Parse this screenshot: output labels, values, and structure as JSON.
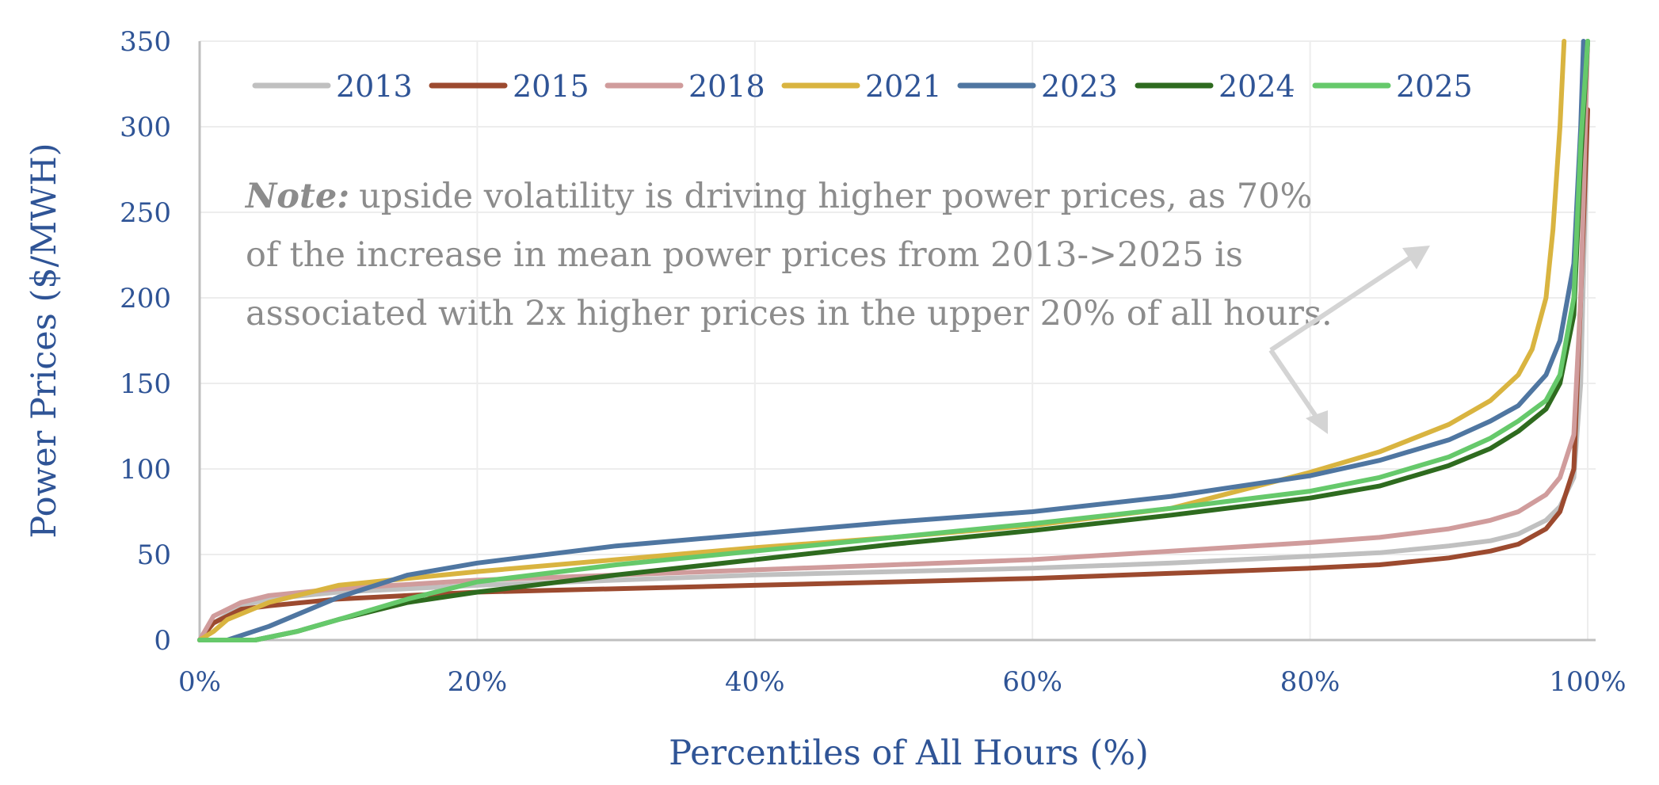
{
  "chart_data": {
    "type": "line",
    "xlabel": "Percentiles of All Hours (%)",
    "ylabel": "Power Prices ($/MWH)",
    "xlim": [
      0,
      100
    ],
    "ylim": [
      0,
      350
    ],
    "x_ticks": [
      "0%",
      "20%",
      "40%",
      "60%",
      "80%",
      "100%"
    ],
    "x_tick_values": [
      0,
      20,
      40,
      60,
      80,
      100
    ],
    "y_ticks": [
      "0",
      "50",
      "100",
      "150",
      "200",
      "250",
      "300",
      "350"
    ],
    "y_tick_values": [
      0,
      50,
      100,
      150,
      200,
      250,
      300,
      350
    ],
    "grid": true,
    "legend_position": "top",
    "annotation": {
      "bold": "Note:",
      "lines": [
        "upside volatility is driving higher power prices, as 70%",
        "of the increase in mean power prices from 2013->2025 is",
        "associated with 2x higher prices in the upper 20% of all hours."
      ]
    },
    "series": [
      {
        "name": "2013",
        "color": "#c0c0c0",
        "x": [
          0,
          1,
          3,
          5,
          10,
          20,
          30,
          40,
          50,
          60,
          70,
          80,
          85,
          90,
          93,
          95,
          97,
          98,
          99,
          99.5,
          100
        ],
        "y": [
          0,
          10,
          20,
          24,
          28,
          32,
          35,
          38,
          40,
          42,
          45,
          49,
          51,
          55,
          58,
          62,
          70,
          78,
          95,
          150,
          310
        ]
      },
      {
        "name": "2015",
        "color": "#9c4a2f",
        "x": [
          0,
          1,
          3,
          5,
          10,
          20,
          30,
          40,
          50,
          60,
          70,
          80,
          85,
          90,
          93,
          95,
          97,
          98,
          99,
          99.5,
          100
        ],
        "y": [
          0,
          10,
          18,
          20,
          24,
          28,
          30,
          32,
          34,
          36,
          39,
          42,
          44,
          48,
          52,
          56,
          65,
          75,
          100,
          200,
          310
        ]
      },
      {
        "name": "2018",
        "color": "#d09c9c",
        "x": [
          0,
          1,
          3,
          5,
          10,
          20,
          30,
          40,
          50,
          60,
          70,
          80,
          85,
          90,
          93,
          95,
          97,
          98,
          99,
          99.5,
          100
        ],
        "y": [
          0,
          14,
          22,
          26,
          30,
          35,
          38,
          41,
          44,
          47,
          52,
          57,
          60,
          65,
          70,
          75,
          85,
          95,
          120,
          200,
          350
        ]
      },
      {
        "name": "2021",
        "color": "#d9b440",
        "x": [
          0,
          1,
          2,
          5,
          10,
          20,
          30,
          40,
          50,
          60,
          70,
          80,
          85,
          90,
          93,
          95,
          96,
          97,
          97.5,
          98,
          98.3
        ],
        "y": [
          0,
          5,
          12,
          22,
          32,
          40,
          47,
          54,
          60,
          67,
          77,
          98,
          110,
          126,
          140,
          155,
          170,
          200,
          240,
          300,
          350
        ]
      },
      {
        "name": "2023",
        "color": "#4f76a1",
        "x": [
          0,
          2,
          5,
          10,
          15,
          20,
          30,
          40,
          50,
          60,
          70,
          80,
          85,
          90,
          93,
          95,
          97,
          98,
          99,
          99.5,
          99.7
        ],
        "y": [
          0,
          0,
          8,
          25,
          38,
          45,
          55,
          62,
          69,
          75,
          84,
          96,
          105,
          117,
          128,
          137,
          155,
          175,
          220,
          300,
          350
        ]
      },
      {
        "name": "2024",
        "color": "#2e6b1f",
        "x": [
          0,
          4,
          7,
          10,
          15,
          20,
          30,
          40,
          50,
          60,
          70,
          80,
          85,
          90,
          93,
          95,
          97,
          98,
          99,
          99.5,
          100
        ],
        "y": [
          0,
          0,
          5,
          12,
          22,
          28,
          38,
          47,
          56,
          64,
          73,
          83,
          90,
          102,
          112,
          122,
          135,
          150,
          190,
          280,
          350
        ]
      },
      {
        "name": "2025",
        "color": "#66c96b",
        "x": [
          0,
          4,
          7,
          10,
          15,
          20,
          30,
          40,
          50,
          60,
          70,
          80,
          85,
          90,
          93,
          95,
          97,
          98,
          99,
          99.5,
          100
        ],
        "y": [
          0,
          0,
          5,
          12,
          24,
          34,
          44,
          52,
          60,
          68,
          77,
          87,
          95,
          107,
          118,
          128,
          140,
          155,
          200,
          290,
          350
        ]
      }
    ]
  }
}
